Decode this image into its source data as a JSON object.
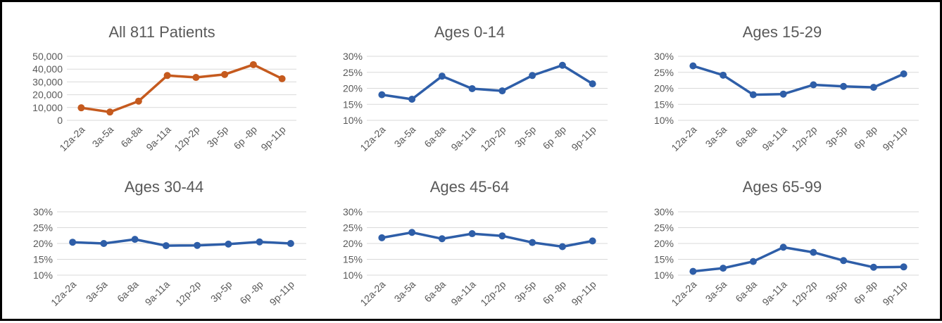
{
  "chart_data": [
    {
      "type": "line",
      "title": "All 811 Patients",
      "categories": [
        "12a-2a",
        "3a-5a",
        "6a-8a",
        "9a-11a",
        "12p-2p",
        "3p-5p",
        "6p -8p",
        "9p-11p"
      ],
      "series": [
        {
          "values": [
            9800,
            6500,
            15000,
            35000,
            33500,
            35800,
            43500,
            32500
          ]
        }
      ],
      "y_ticks": [
        "0",
        "10,000",
        "20,000",
        "30,000",
        "40,000",
        "50,000"
      ],
      "ylim": [
        0,
        50000
      ],
      "grid": true,
      "color": "#c55a1e"
    },
    {
      "type": "line",
      "title": "Ages 0-14",
      "categories": [
        "12a-2a",
        "3a-5a",
        "6a-8a",
        "9a-11a",
        "12p-2p",
        "3p-5p",
        "6p -8p",
        "9p-11p"
      ],
      "series": [
        {
          "values": [
            18.0,
            16.6,
            23.8,
            19.9,
            19.2,
            24.0,
            27.2,
            21.4
          ]
        }
      ],
      "y_ticks": [
        "10%",
        "15%",
        "20%",
        "25%",
        "30%"
      ],
      "ylim": [
        10,
        30
      ],
      "grid": true,
      "color": "#2e5ea8"
    },
    {
      "type": "line",
      "title": "Ages 15-29",
      "categories": [
        "12a-2a",
        "3a-5a",
        "6a-8a",
        "9a-11a",
        "12p-2p",
        "3p-5p",
        "6p -8p",
        "9p-11p"
      ],
      "series": [
        {
          "values": [
            27.0,
            24.1,
            18.0,
            18.2,
            21.1,
            20.6,
            20.3,
            24.5
          ]
        }
      ],
      "y_ticks": [
        "10%",
        "15%",
        "20%",
        "25%",
        "30%"
      ],
      "ylim": [
        10,
        30
      ],
      "grid": true,
      "color": "#2e5ea8"
    },
    {
      "type": "line",
      "title": "Ages 30-44",
      "categories": [
        "12a-2a",
        "3a-5a",
        "6a-8a",
        "9a-11a",
        "12p-2p",
        "3p-5p",
        "6p -8p",
        "9p-11p"
      ],
      "series": [
        {
          "values": [
            20.4,
            20.0,
            21.3,
            19.3,
            19.4,
            19.8,
            20.5,
            20.0
          ]
        }
      ],
      "y_ticks": [
        "10%",
        "15%",
        "20%",
        "25%",
        "30%"
      ],
      "ylim": [
        10,
        30
      ],
      "grid": true,
      "color": "#2e5ea8"
    },
    {
      "type": "line",
      "title": "Ages 45-64",
      "categories": [
        "12a-2a",
        "3a-5a",
        "6a-8a",
        "9a-11a",
        "12p-2p",
        "3p-5p",
        "6p -8p",
        "9p-11p"
      ],
      "series": [
        {
          "values": [
            21.8,
            23.5,
            21.5,
            23.1,
            22.4,
            20.3,
            19.0,
            20.8
          ]
        }
      ],
      "y_ticks": [
        "10%",
        "15%",
        "20%",
        "25%",
        "30%"
      ],
      "ylim": [
        10,
        30
      ],
      "grid": true,
      "color": "#2e5ea8"
    },
    {
      "type": "line",
      "title": "Ages 65-99",
      "categories": [
        "12a-2a",
        "3a-5a",
        "6a-8a",
        "9a-11a",
        "12p-2p",
        "3p-5p",
        "6p -8p",
        "9p-11p"
      ],
      "series": [
        {
          "values": [
            11.2,
            12.2,
            14.3,
            18.8,
            17.2,
            14.6,
            12.5,
            12.6
          ]
        }
      ],
      "y_ticks": [
        "10%",
        "15%",
        "20%",
        "25%",
        "30%"
      ],
      "ylim": [
        10,
        30
      ],
      "grid": true,
      "color": "#2e5ea8"
    }
  ]
}
